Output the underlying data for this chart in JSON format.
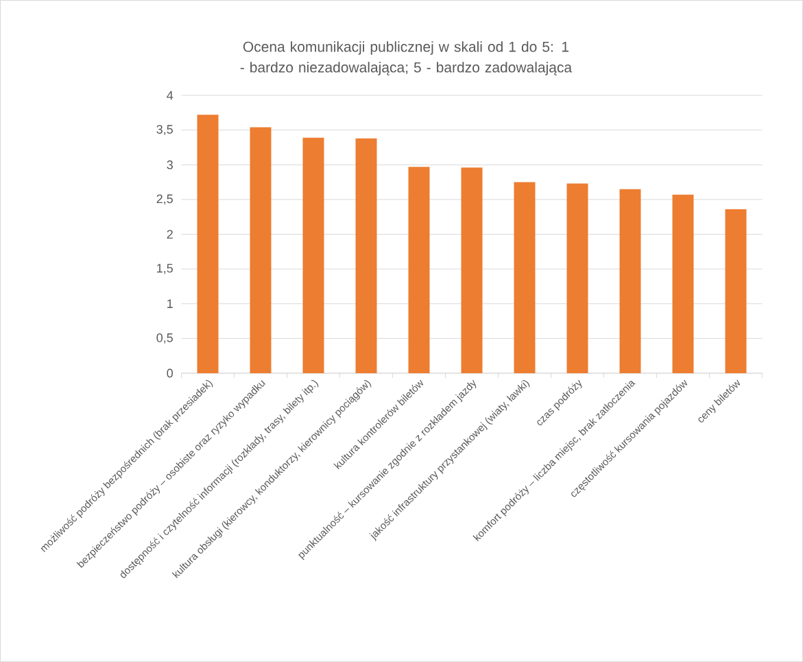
{
  "chart_data": {
    "type": "bar",
    "title": "Ocena komunikacji publicznej w skali od 1 do 5: 1 - bardzo niezadowalająca; 5 - bardzo zadowalająca",
    "categories": [
      "możliwość podróży bezpośrednich (brak przesiadek)",
      "bezpieczeństwo podróży – osobiste oraz ryzyko wypadku",
      "dostępność i czytelność informacji (rozkłady, trasy, bilety itp.)",
      "kultura obsługi (kierowcy, konduktorzy, kierownicy pociągów)",
      "kultura kontrolerów biletów",
      "punktualność – kursowanie zgodnie z rozkładem jazdy",
      "jakość infrastruktury przystankowej (wiaty, ławki)",
      "czas podróży",
      "komfort podróży – liczba miejsc, brak zatłoczenia",
      "częstotliwość kursowania pojazdów",
      "ceny biletów"
    ],
    "values": [
      3.72,
      3.54,
      3.39,
      3.38,
      2.97,
      2.96,
      2.75,
      2.73,
      2.65,
      2.57,
      2.36
    ],
    "color": "#ed7d31",
    "ylim": [
      0,
      4
    ],
    "yticks": [
      0,
      {
        "value": 0.5,
        "label": "0,5"
      },
      1,
      {
        "value": 1.5,
        "label": "1,5"
      },
      2,
      {
        "value": 2.5,
        "label": "2,5"
      },
      3,
      {
        "value": 3.5,
        "label": "3,5"
      },
      4
    ],
    "grid": "y"
  }
}
